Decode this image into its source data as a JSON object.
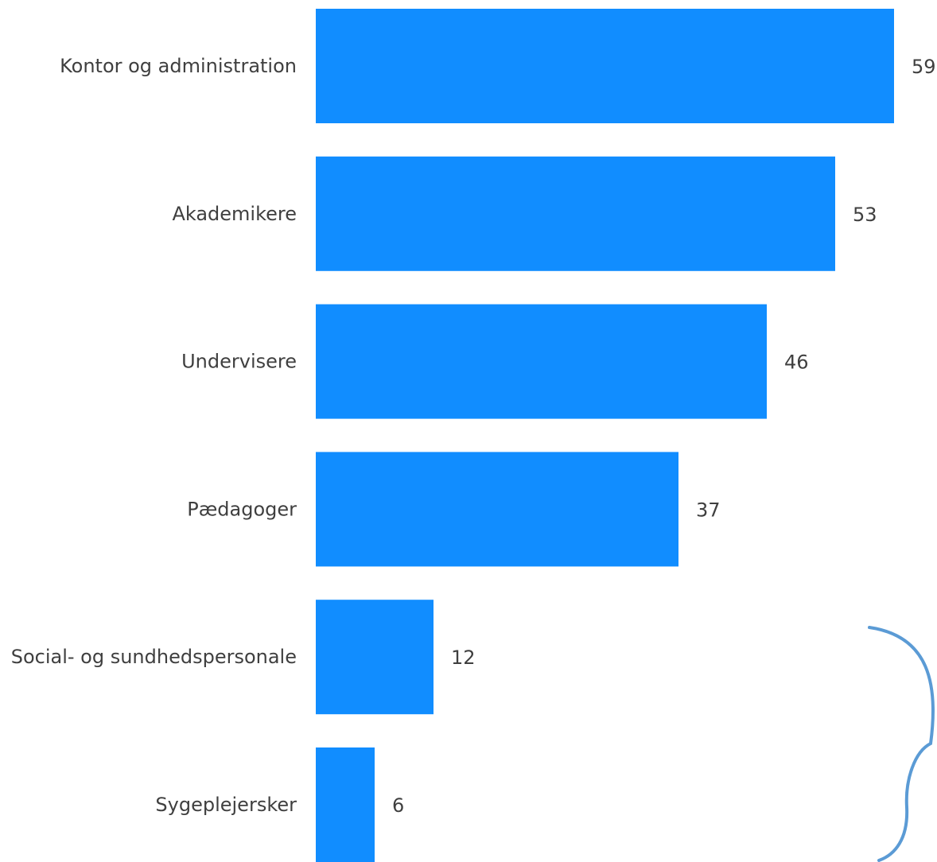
{
  "chart_data": {
    "type": "bar",
    "orientation": "horizontal",
    "categories": [
      "Kontor og administration",
      "Akademikere",
      "Undervisere",
      "Pædagoger",
      "Social- og sundhedspersonale",
      "Sygeplejersker"
    ],
    "values": [
      59,
      53,
      46,
      37,
      12,
      6
    ],
    "title": "",
    "xlabel": "",
    "ylabel": "",
    "xlim": [
      0,
      59
    ],
    "grid": false,
    "data_labels": true,
    "bar_color": "#118DFF",
    "annotation": {
      "type": "curly-brace",
      "spans_categories": [
        "Social- og sundhedspersonale",
        "Sygeplejersker"
      ],
      "color": "#5B9BD5"
    }
  }
}
